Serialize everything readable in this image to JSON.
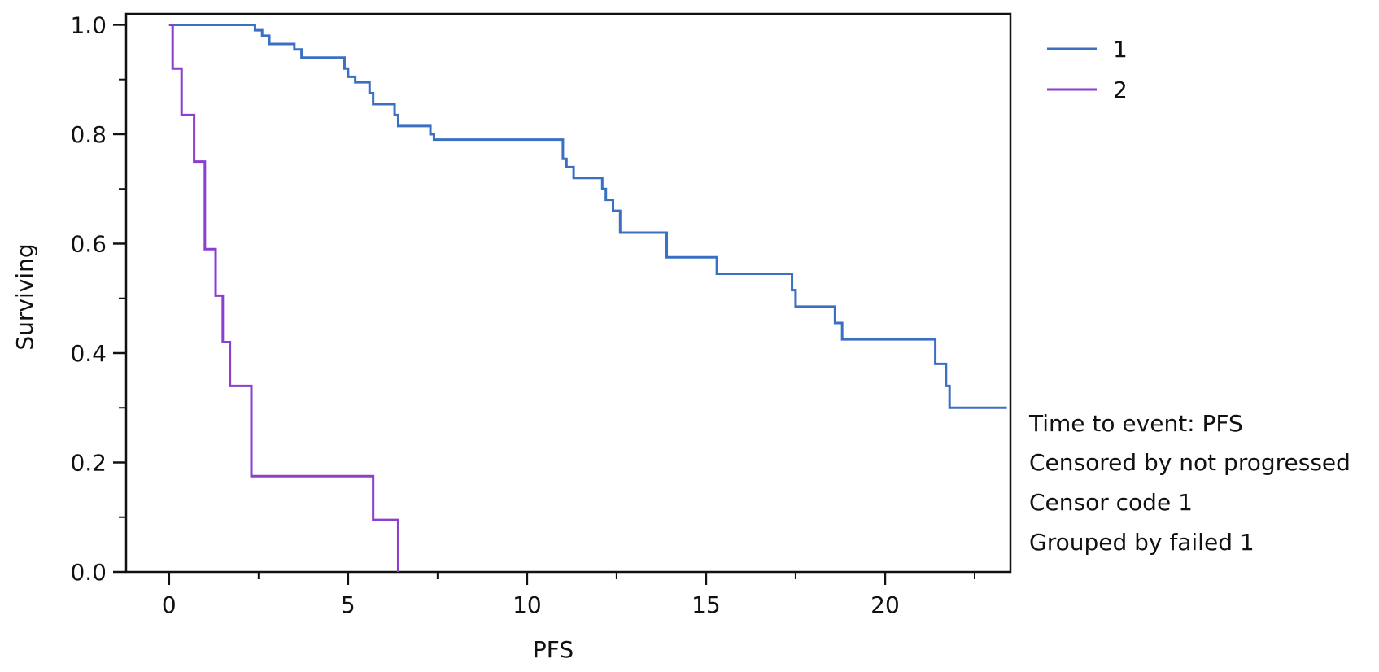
{
  "chart_data": {
    "type": "line",
    "title": "",
    "xlabel": "PFS",
    "ylabel": "Surviving",
    "xlim": [
      -1.2,
      23.5
    ],
    "ylim": [
      0,
      1.02
    ],
    "x_ticks": [
      0,
      5,
      10,
      15,
      20
    ],
    "x_tick_labels": [
      "0",
      "5",
      "10",
      "15",
      "20"
    ],
    "y_ticks": [
      0,
      0.2,
      0.4,
      0.6,
      0.8,
      1.0
    ],
    "y_tick_labels": [
      "0.0",
      "0.2",
      "0.4",
      "0.6",
      "0.8",
      "1.0"
    ],
    "grid": false,
    "legend_position": "top-right, outside plot",
    "series": [
      {
        "name": "1",
        "color": "#3a6fc4",
        "step": true,
        "x": [
          0,
          2.4,
          2.6,
          2.8,
          3.5,
          3.7,
          4.9,
          5.0,
          5.2,
          5.6,
          5.7,
          6.3,
          6.4,
          7.3,
          7.4,
          11.0,
          11.1,
          11.3,
          11.6,
          12.1,
          12.2,
          12.4,
          12.6,
          13.9,
          15.3,
          17.4,
          17.5,
          18.6,
          18.8,
          21.4,
          21.7,
          21.8,
          23.4
        ],
        "y": [
          1.0,
          0.99,
          0.98,
          0.965,
          0.955,
          0.94,
          0.92,
          0.905,
          0.895,
          0.875,
          0.855,
          0.835,
          0.815,
          0.8,
          0.79,
          0.755,
          0.74,
          0.72,
          0.72,
          0.7,
          0.68,
          0.66,
          0.62,
          0.575,
          0.545,
          0.515,
          0.485,
          0.455,
          0.425,
          0.38,
          0.34,
          0.3,
          0.3
        ]
      },
      {
        "name": "2",
        "color": "#8a3fcf",
        "step": true,
        "x": [
          0,
          0.1,
          0.35,
          0.7,
          1.0,
          1.3,
          1.5,
          1.7,
          2.3,
          5.7,
          6.4
        ],
        "y": [
          1.0,
          0.92,
          0.835,
          0.75,
          0.59,
          0.505,
          0.42,
          0.34,
          0.175,
          0.095,
          0.0
        ]
      }
    ],
    "annotations": [
      "Time to event: PFS",
      "Censored by not progressed",
      "Censor code 1",
      "Grouped by failed 1"
    ]
  }
}
